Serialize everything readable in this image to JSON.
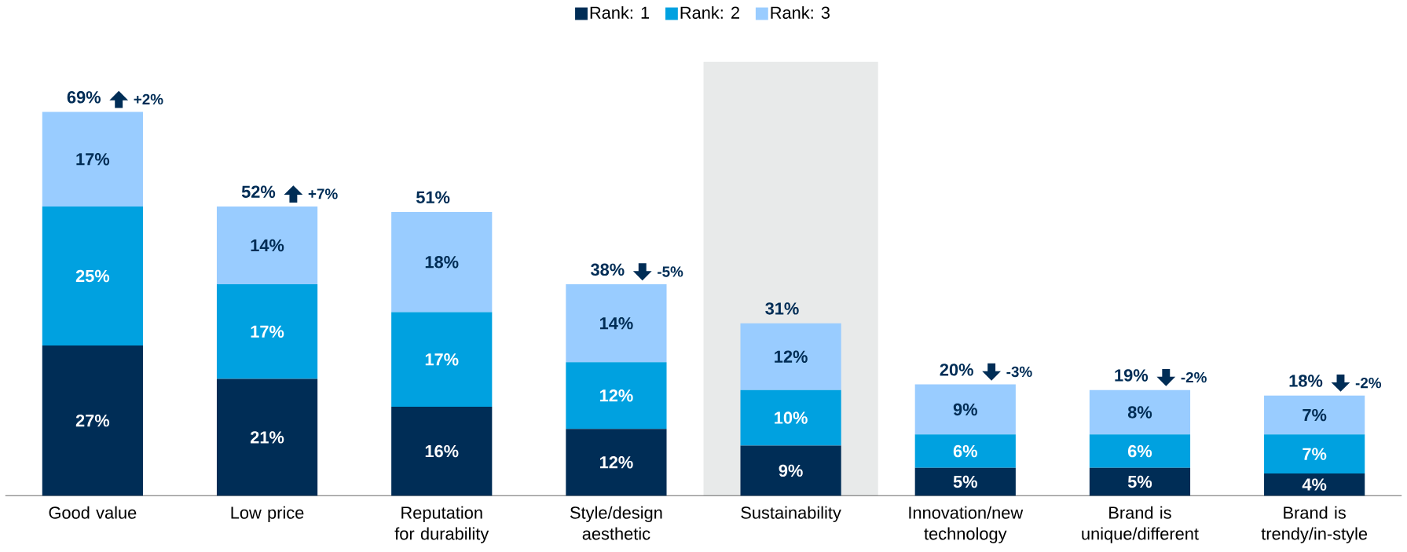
{
  "chart_data": {
    "type": "bar",
    "stacked": true,
    "categories": [
      "Good value",
      "Low price",
      "Reputation for durability",
      "Style/design aesthetic",
      "Sustainability",
      "Innovation/new technology",
      "Brand is unique/different",
      "Brand is trendy/in-style"
    ],
    "series": [
      {
        "name": "Rank: 1",
        "color": "#002d56",
        "values": [
          27,
          21,
          16,
          12,
          9,
          5,
          5,
          4
        ],
        "value_labels": [
          "27%",
          "21%",
          "16%",
          "12%",
          "9%",
          "5%",
          "5%",
          "4%"
        ]
      },
      {
        "name": "Rank: 2",
        "color": "#00a1e0",
        "values": [
          25,
          17,
          17,
          12,
          10,
          6,
          6,
          7
        ],
        "value_labels": [
          "25%",
          "17%",
          "17%",
          "12%",
          "10%",
          "6%",
          "6%",
          "7%"
        ]
      },
      {
        "name": "Rank: 3",
        "color": "#99ccff",
        "values": [
          17,
          14,
          18,
          14,
          12,
          9,
          8,
          7
        ],
        "value_labels": [
          "17%",
          "14%",
          "18%",
          "14%",
          "12%",
          "9%",
          "8%",
          "7%"
        ]
      }
    ],
    "totals": [
      "69%",
      "52%",
      "51%",
      "38%",
      "31%",
      "20%",
      "19%",
      "18%"
    ],
    "annotations": [
      {
        "text": "+2%",
        "x": "Good value",
        "y": 69
      },
      {
        "text": "+7%",
        "x": "Low price",
        "y": 52
      },
      {
        "text": "-5%",
        "x": "Style/design aesthetic",
        "y": 38
      },
      {
        "text": "-3%",
        "x": "Innovation/new technology",
        "y": 20
      },
      {
        "text": "-2%",
        "x": "Brand is unique/different",
        "y": 19
      },
      {
        "text": "-2%",
        "x": "Brand is trendy/in-style",
        "y": 18
      }
    ],
    "bands": [
      {
        "axis": "x",
        "from": "Sustainability",
        "to": "Sustainability",
        "color": "#e8eaea"
      }
    ],
    "ylim": [
      0,
      78
    ],
    "legend": "top"
  }
}
